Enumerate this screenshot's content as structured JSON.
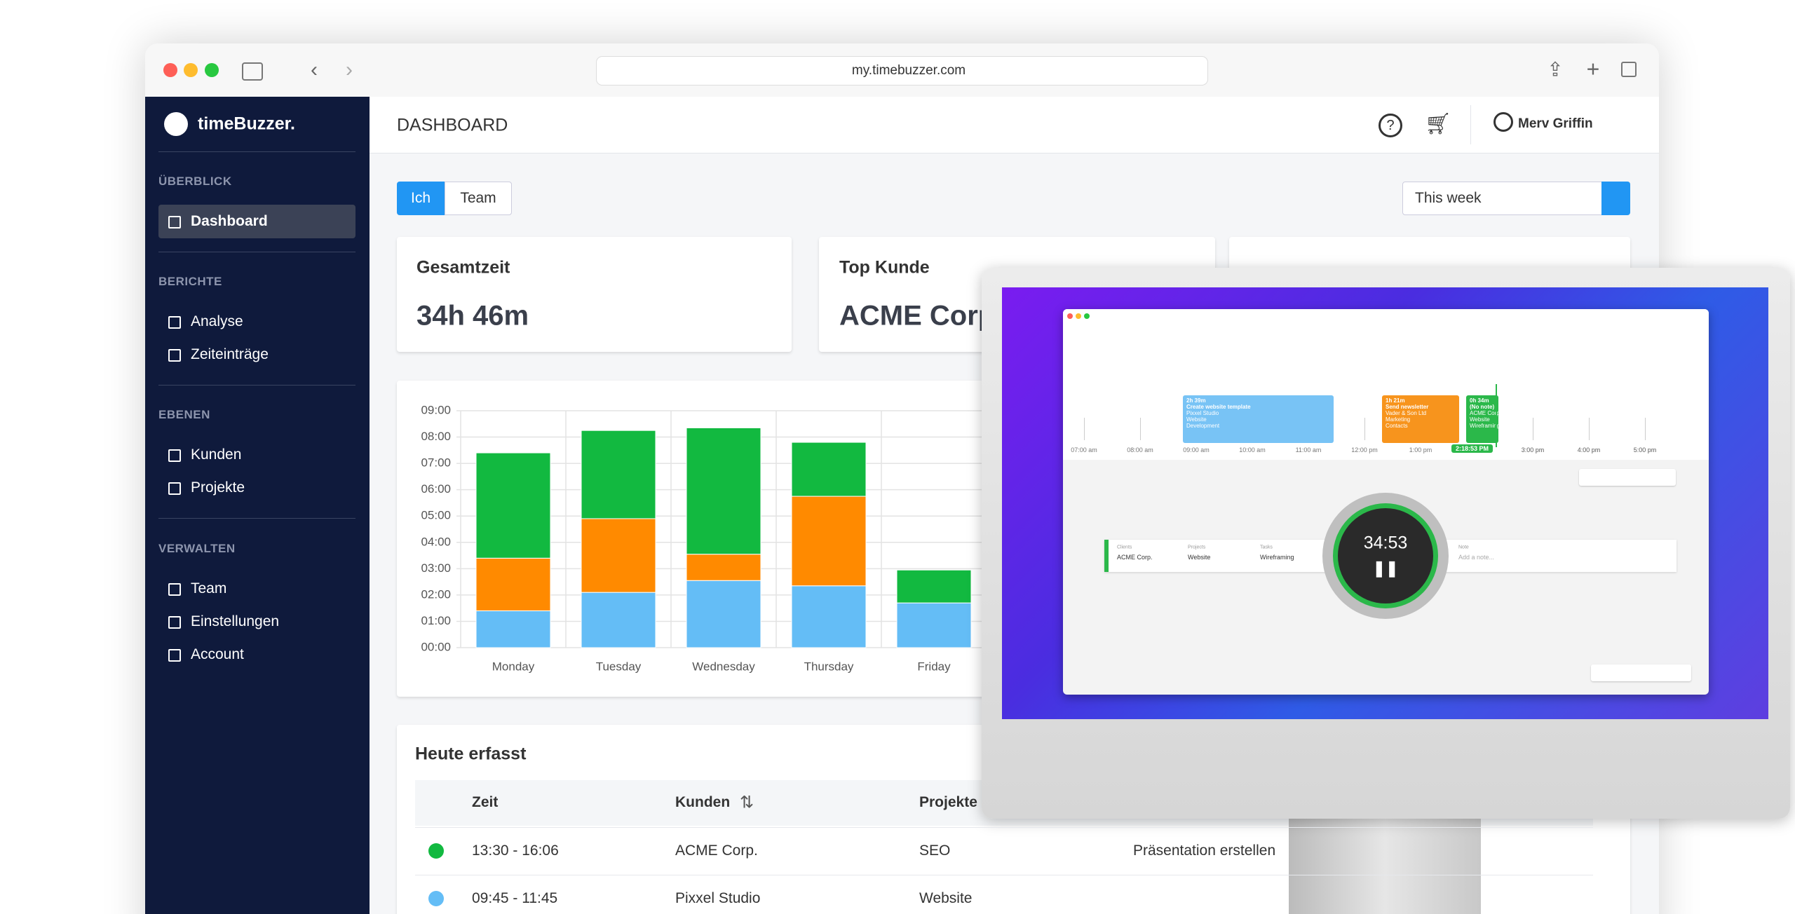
{
  "browser": {
    "url": "my.timebuzzer.com"
  },
  "sidebar": {
    "brand": "timeBuzzer.",
    "sections": [
      {
        "title": "ÜBERBLICK",
        "items": [
          "Dashboard"
        ]
      },
      {
        "title": "BERICHTE",
        "items": [
          "Analyse",
          "Zeiteinträge"
        ]
      },
      {
        "title": "EBENEN",
        "items": [
          "Kunden",
          "Projekte"
        ]
      },
      {
        "title": "VERWALTEN",
        "items": [
          "Team",
          "Einstellungen",
          "Account"
        ]
      }
    ]
  },
  "header": {
    "title": "DASHBOARD",
    "user": "Merv Griffin"
  },
  "toggle": [
    "Ich",
    "Team"
  ],
  "range": "This week",
  "cards": [
    {
      "label": "Gesamtzeit",
      "value": "34h 46m"
    },
    {
      "label": "Top Kunde",
      "value": "ACME Corp."
    }
  ],
  "chart_data": {
    "type": "bar",
    "stacked": true,
    "grid": true,
    "categories": [
      "Monday",
      "Tuesday",
      "Wednesday",
      "Thursday",
      "Friday"
    ],
    "series": [
      {
        "color": "#64bdf6",
        "values": [
          1.4,
          2.1,
          2.55,
          2.35,
          1.7
        ]
      },
      {
        "color": "#ff8a00",
        "values": [
          2.0,
          2.8,
          1.0,
          3.4,
          0
        ]
      },
      {
        "color": "#12b940",
        "values": [
          4.0,
          3.35,
          4.8,
          2.05,
          1.25
        ]
      }
    ],
    "ylim": [
      0,
      9
    ],
    "yticks": [
      {
        "value": 0,
        "label": "00:00"
      },
      {
        "value": 1,
        "label": "01:00"
      },
      {
        "value": 2,
        "label": "02:00"
      },
      {
        "value": 3,
        "label": "03:00"
      },
      {
        "value": 4,
        "label": "04:00"
      },
      {
        "value": 5,
        "label": "05:00"
      },
      {
        "value": 6,
        "label": "06:00"
      },
      {
        "value": 7,
        "label": "07:00"
      },
      {
        "value": 8,
        "label": "08:00"
      },
      {
        "value": 9,
        "label": "09:00"
      }
    ]
  },
  "table": {
    "title": "Heute erfasst",
    "columns": [
      "Zeit",
      "Kunden",
      "Projekte"
    ],
    "rows": [
      {
        "color": "#12b940",
        "cells": [
          "13:30 - 16:06",
          "ACME Corp.",
          "SEO",
          "Präsentation erstellen"
        ]
      },
      {
        "color": "#64bdf6",
        "cells": [
          "09:45 - 11:45",
          "Pixxel Studio",
          "Website"
        ]
      }
    ]
  },
  "app": {
    "timer": "34:53",
    "now": "2:18:53 PM",
    "timeline": [
      "07:00 am",
      "08:00 am",
      "09:00 am",
      "10:00 am",
      "11:00 am",
      "12:00 pm",
      "1:00 pm",
      null,
      "3:00 pm",
      "4:00 pm",
      "5:00 pm"
    ],
    "events": [
      {
        "duration": "2h 39m",
        "title": "Create website template",
        "color": "#78c3f5",
        "lines": [
          "Pixxel Studio",
          "Website",
          "Development"
        ]
      },
      {
        "duration": "1h 21m",
        "title": "Send newsletter",
        "color": "#f7941d",
        "lines": [
          "Vader & Son Ltd",
          "Marketing",
          "Contacts"
        ]
      },
      {
        "duration": "0h 34m",
        "title": "(No note)",
        "color": "#2bb84a",
        "lines": [
          "ACME Corp.",
          "Website",
          "Wireframing"
        ]
      }
    ],
    "fields": [
      {
        "label": "Clients",
        "value": "ACME Corp."
      },
      {
        "label": "Projects",
        "value": "Website"
      },
      {
        "label": "Tasks",
        "value": "Wireframing"
      },
      {
        "label": "Note",
        "value": "Add a note..."
      }
    ]
  }
}
